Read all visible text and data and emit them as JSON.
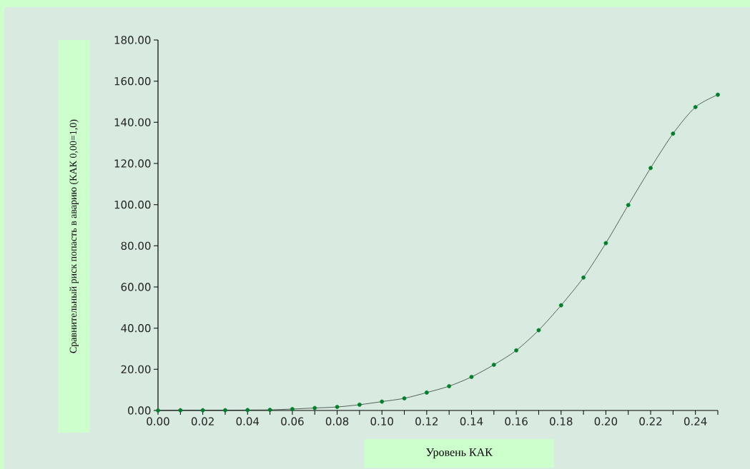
{
  "chart_data": {
    "type": "line",
    "xlabel": "Уровень КАК",
    "ylabel": "Сравнительный риск попасть в аварию (КАК 0,00=1,0)",
    "x": [
      0.0,
      0.01,
      0.02,
      0.03,
      0.04,
      0.05,
      0.06,
      0.07,
      0.08,
      0.09,
      0.1,
      0.11,
      0.12,
      0.13,
      0.14,
      0.15,
      0.16,
      0.17,
      0.18,
      0.19,
      0.2,
      0.21,
      0.22,
      0.23,
      0.24,
      0.25
    ],
    "series": [
      {
        "color": "#00802b",
        "values": [
          0.0,
          0.1,
          0.1,
          0.1,
          0.2,
          0.3,
          0.7,
          1.2,
          1.7,
          2.8,
          4.3,
          5.9,
          8.7,
          11.8,
          16.3,
          22.2,
          29.2,
          39.0,
          51.1,
          64.6,
          81.3,
          99.8,
          117.8,
          134.5,
          147.4,
          153.4
        ]
      }
    ],
    "marker": "circle",
    "line_style": "solid",
    "grid": false,
    "xlim": [
      0,
      0.25
    ],
    "ylim": [
      0,
      180
    ],
    "xticks": [
      {
        "value": 0,
        "label": "0.00"
      },
      {
        "value": 0.01,
        "label": null
      },
      {
        "value": 0.02,
        "label": "0.02"
      },
      {
        "value": 0.03,
        "label": null
      },
      {
        "value": 0.04,
        "label": "0.04"
      },
      {
        "value": 0.05,
        "label": null
      },
      {
        "value": 0.06,
        "label": "0.06"
      },
      {
        "value": 0.07,
        "label": null
      },
      {
        "value": 0.08,
        "label": "0.08"
      },
      {
        "value": 0.09,
        "label": null
      },
      {
        "value": 0.1,
        "label": "0.10"
      },
      {
        "value": 0.11,
        "label": null
      },
      {
        "value": 0.12,
        "label": "0.12"
      },
      {
        "value": 0.13,
        "label": null
      },
      {
        "value": 0.14,
        "label": "0.14"
      },
      {
        "value": 0.15,
        "label": null
      },
      {
        "value": 0.16,
        "label": "0.16"
      },
      {
        "value": 0.17,
        "label": null
      },
      {
        "value": 0.18,
        "label": "0.18"
      },
      {
        "value": 0.19,
        "label": null
      },
      {
        "value": 0.2,
        "label": "0.20"
      },
      {
        "value": 0.21,
        "label": null
      },
      {
        "value": 0.22,
        "label": "0.22"
      },
      {
        "value": 0.23,
        "label": null
      },
      {
        "value": 0.24,
        "label": "0.24"
      },
      {
        "value": 0.25,
        "label": null
      }
    ],
    "yticks": [
      {
        "value": 0,
        "label": "0.00"
      },
      {
        "value": 20,
        "label": "20.00"
      },
      {
        "value": 40,
        "label": "40.00"
      },
      {
        "value": 60,
        "label": "60.00"
      },
      {
        "value": 80,
        "label": "80.00"
      },
      {
        "value": 100,
        "label": "100.00"
      },
      {
        "value": 120,
        "label": "120.00"
      },
      {
        "value": 140,
        "label": "140.00"
      },
      {
        "value": 160,
        "label": "160.00"
      },
      {
        "value": 180,
        "label": "180.00"
      }
    ]
  }
}
